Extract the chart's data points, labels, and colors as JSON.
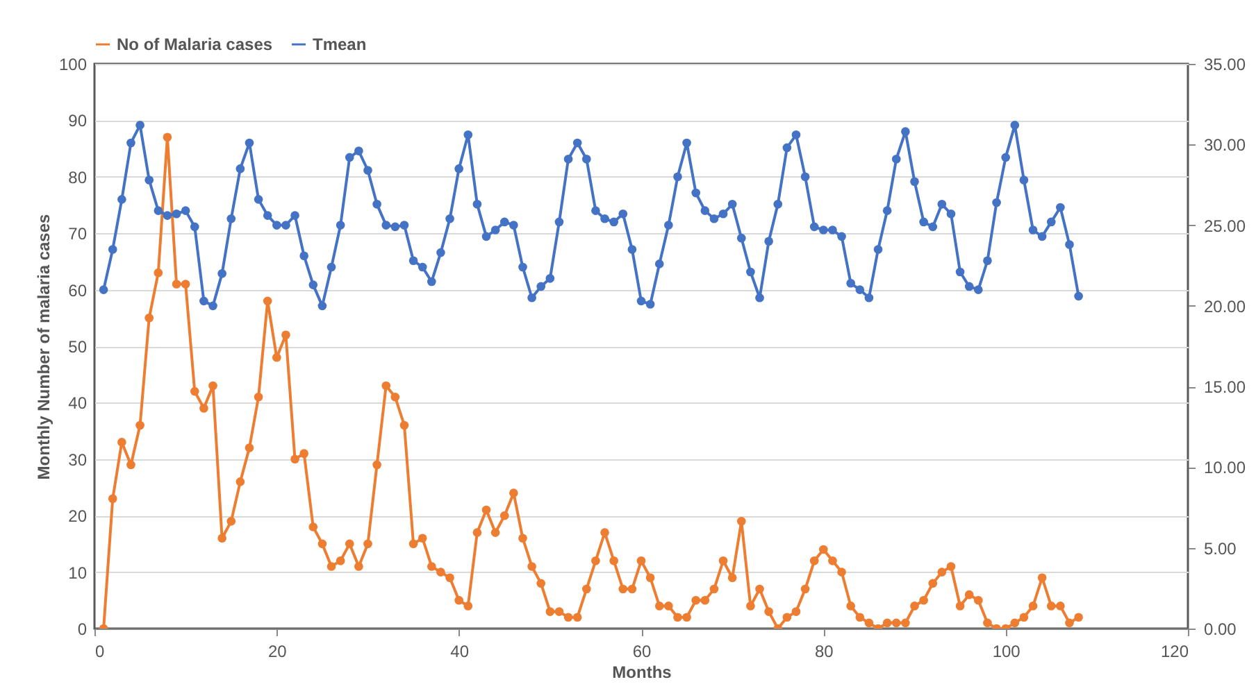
{
  "chart_data": {
    "type": "line",
    "xlabel": "Months",
    "ylabel": "Monthly Number of malaria cases",
    "x": [
      1,
      2,
      3,
      4,
      5,
      6,
      7,
      8,
      9,
      10,
      11,
      12,
      13,
      14,
      15,
      16,
      17,
      18,
      19,
      20,
      21,
      22,
      23,
      24,
      25,
      26,
      27,
      28,
      29,
      30,
      31,
      32,
      33,
      34,
      35,
      36,
      37,
      38,
      39,
      40,
      41,
      42,
      43,
      44,
      45,
      46,
      47,
      48,
      49,
      50,
      51,
      52,
      53,
      54,
      55,
      56,
      57,
      58,
      59,
      60,
      61,
      62,
      63,
      64,
      65,
      66,
      67,
      68,
      69,
      70,
      71,
      72,
      73,
      74,
      75,
      76,
      77,
      78,
      79,
      80,
      81,
      82,
      83,
      84,
      85,
      86,
      87,
      88,
      89,
      90,
      91,
      92,
      93,
      94,
      95,
      96,
      97,
      98,
      99,
      100,
      101,
      102,
      103,
      104,
      105,
      106,
      107,
      108
    ],
    "series": [
      {
        "name": "No of Malaria cases",
        "color": "#ed7d31",
        "values": [
          0,
          23,
          33,
          29,
          36,
          55,
          63,
          87,
          61,
          61,
          42,
          39,
          43,
          16,
          19,
          26,
          32,
          41,
          58,
          48,
          52,
          30,
          31,
          18,
          15,
          11,
          12,
          15,
          11,
          15,
          29,
          43,
          41,
          36,
          15,
          16,
          11,
          10,
          9,
          5,
          4,
          17,
          21,
          17,
          20,
          24,
          16,
          11,
          8,
          3,
          3,
          2,
          2,
          7,
          12,
          17,
          12,
          7,
          7,
          12,
          9,
          4,
          4,
          2,
          2,
          5,
          5,
          7,
          12,
          9,
          19,
          4,
          7,
          3,
          0,
          2,
          3,
          7,
          12,
          14,
          12,
          10,
          4,
          2,
          1,
          0,
          1,
          1,
          1,
          4,
          5,
          8,
          10,
          11,
          4,
          6,
          5,
          1,
          0,
          0,
          1,
          2,
          4,
          9,
          4,
          4,
          1,
          2
        ]
      },
      {
        "name": "Tmean",
        "color": "#4472c4",
        "axis": "y2",
        "values": [
          21.0,
          23.5,
          26.6,
          30.1,
          31.2,
          27.8,
          25.9,
          25.6,
          25.7,
          25.9,
          24.9,
          20.3,
          20.0,
          22.0,
          25.4,
          28.5,
          30.1,
          26.6,
          25.6,
          25.0,
          25.0,
          25.6,
          23.1,
          21.3,
          20.0,
          22.4,
          25.0,
          29.2,
          29.6,
          28.4,
          26.3,
          25.0,
          24.9,
          25.0,
          22.8,
          22.4,
          21.5,
          23.3,
          25.4,
          28.5,
          30.6,
          26.3,
          24.3,
          24.7,
          25.2,
          25.0,
          22.4,
          20.5,
          21.2,
          21.7,
          25.2,
          29.1,
          30.1,
          29.1,
          25.9,
          25.4,
          25.2,
          25.7,
          23.5,
          20.3,
          20.1,
          22.6,
          25.0,
          28.0,
          30.1,
          27.0,
          25.9,
          25.4,
          25.7,
          26.3,
          24.2,
          22.1,
          20.5,
          24.0,
          26.3,
          29.8,
          30.6,
          28.0,
          24.9,
          24.7,
          24.7,
          24.3,
          21.4,
          21.0,
          20.5,
          23.5,
          25.9,
          29.1,
          30.8,
          27.7,
          25.2,
          24.9,
          26.3,
          25.7,
          22.1,
          21.2,
          21.0,
          22.8,
          26.4,
          29.2,
          31.2,
          27.8,
          24.7,
          24.3,
          25.2,
          26.1,
          23.8,
          20.6
        ]
      }
    ],
    "xlim": [
      0,
      120
    ],
    "xticks": [
      0,
      20,
      40,
      60,
      80,
      100,
      120
    ],
    "ylim": [
      0,
      100
    ],
    "yticks": [
      0,
      10,
      20,
      30,
      40,
      50,
      60,
      70,
      80,
      90,
      100
    ],
    "y2lim": [
      0,
      35
    ],
    "y2ticks": [
      {
        "value": 0,
        "label": "0.00"
      },
      {
        "value": 5,
        "label": "5.00"
      },
      {
        "value": 10,
        "label": "10.00"
      },
      {
        "value": 15,
        "label": "15.00"
      },
      {
        "value": 20,
        "label": "20.00"
      },
      {
        "value": 25,
        "label": "25.00"
      },
      {
        "value": 30,
        "label": "30.00"
      },
      {
        "value": 35,
        "label": "35.00"
      }
    ],
    "grid": "y",
    "legend": "top",
    "marker": "circle",
    "line_style": "solid"
  }
}
